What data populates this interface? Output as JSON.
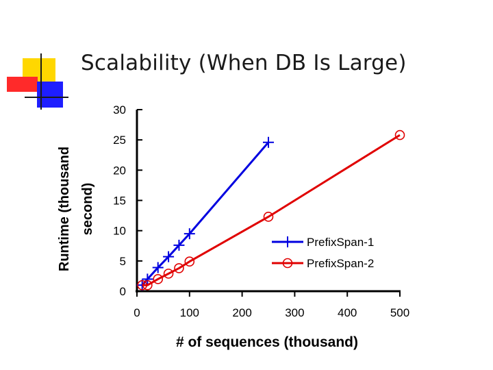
{
  "slide": {
    "title": "Scalability (When DB Is Large)"
  },
  "colors": {
    "logo_yellow": "#ffd700",
    "logo_red": "#ff2a2a",
    "logo_blue": "#1e1eff",
    "logo_line": "#1a1a1a",
    "series1": "#0000e0",
    "series2": "#e00000"
  },
  "chart_data": {
    "type": "line",
    "xlabel": "# of sequences (thousand)",
    "ylabel_lines": [
      "Runtime (thousand",
      "second)"
    ],
    "xlim": [
      0,
      500
    ],
    "ylim": [
      0,
      30
    ],
    "xticks": [
      0,
      100,
      200,
      300,
      400,
      500
    ],
    "yticks": [
      0,
      5,
      10,
      15,
      20,
      25,
      30
    ],
    "grid": false,
    "legend_position": "lower-right",
    "series": [
      {
        "name": "PrefixSpan-1",
        "marker": "plus",
        "color": "#0000e0",
        "points": [
          [
            10,
            1.0
          ],
          [
            20,
            2.0
          ],
          [
            40,
            3.9
          ],
          [
            60,
            5.7
          ],
          [
            80,
            7.6
          ],
          [
            100,
            9.5
          ],
          [
            250,
            24.6
          ]
        ]
      },
      {
        "name": "PrefixSpan-2",
        "marker": "circle",
        "color": "#e00000",
        "points": [
          [
            10,
            1.0
          ],
          [
            20,
            1.0
          ],
          [
            40,
            2.0
          ],
          [
            60,
            2.9
          ],
          [
            80,
            3.8
          ],
          [
            100,
            4.9
          ],
          [
            250,
            12.3
          ],
          [
            500,
            25.8
          ]
        ]
      }
    ]
  }
}
